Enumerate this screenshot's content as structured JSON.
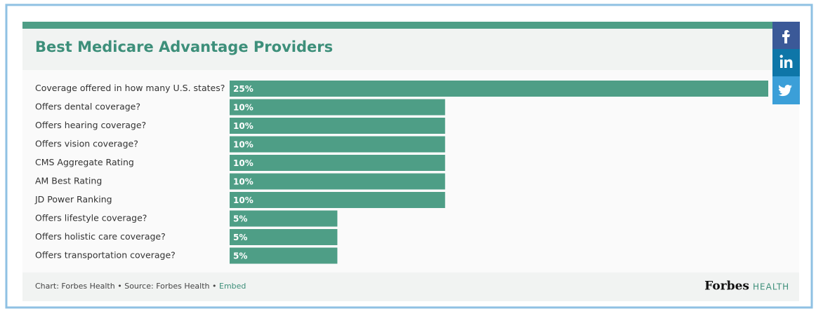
{
  "chart_data": {
    "type": "bar",
    "orientation": "horizontal",
    "title": "Best Medicare Advantage Providers",
    "categories": [
      "Coverage offered in how many U.S. states?",
      "Offers dental coverage?",
      "Offers hearing coverage?",
      "Offers vision coverage?",
      "CMS Aggregate Rating",
      "AM Best Rating",
      "JD Power Ranking",
      "Offers lifestyle coverage?",
      "Offers holistic care coverage?",
      "Offers transportation coverage?"
    ],
    "values": [
      25,
      10,
      10,
      10,
      10,
      10,
      10,
      5,
      5,
      5
    ],
    "value_labels": [
      "25%",
      "10%",
      "10%",
      "10%",
      "10%",
      "10%",
      "10%",
      "5%",
      "5%",
      "5%"
    ],
    "color": "#4e9e86",
    "xlim": [
      0,
      25
    ],
    "footer": {
      "chart_credit": "Chart: Forbes Health",
      "separator": "•",
      "source": "Source: Forbes Health",
      "embed": "Embed"
    },
    "logo": {
      "brand": "Forbes",
      "section": "HEALTH"
    }
  }
}
